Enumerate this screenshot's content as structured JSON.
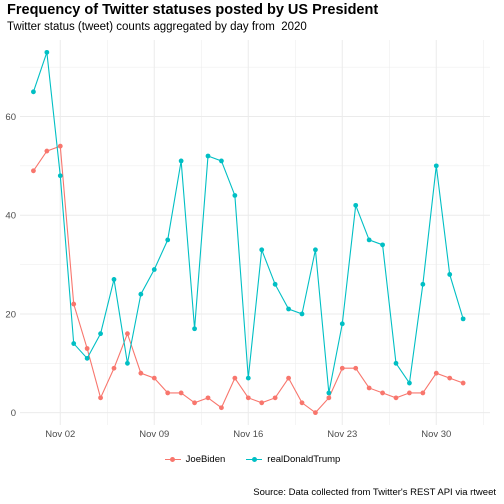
{
  "colors": {
    "JoeBiden": "#F8766D",
    "realDonaldTrump": "#00BFC4",
    "grid": "#ebebeb"
  },
  "chart_data": {
    "type": "line",
    "title": "Frequency of Twitter statuses posted by US President",
    "subtitle": "Twitter status (tweet) counts aggregated by day from  2020",
    "caption": "Source: Data collected from Twitter's REST API via rtweet",
    "xlabel": "",
    "ylabel": "",
    "x": [
      "2020-10-31",
      "2020-11-01",
      "2020-11-02",
      "2020-11-03",
      "2020-11-04",
      "2020-11-05",
      "2020-11-06",
      "2020-11-07",
      "2020-11-08",
      "2020-11-09",
      "2020-11-10",
      "2020-11-11",
      "2020-11-12",
      "2020-11-13",
      "2020-11-14",
      "2020-11-15",
      "2020-11-16",
      "2020-11-17",
      "2020-11-18",
      "2020-11-19",
      "2020-11-20",
      "2020-11-21",
      "2020-11-22",
      "2020-11-23",
      "2020-11-24",
      "2020-11-25",
      "2020-11-26",
      "2020-11-27",
      "2020-11-28",
      "2020-11-29",
      "2020-11-30",
      "2020-12-01",
      "2020-12-02",
      "2020-12-03"
    ],
    "x_ticks": [
      {
        "date": "2020-11-02",
        "label": "Nov 02"
      },
      {
        "date": "2020-11-09",
        "label": "Nov 09"
      },
      {
        "date": "2020-11-16",
        "label": "Nov 16"
      },
      {
        "date": "2020-11-23",
        "label": "Nov 23"
      },
      {
        "date": "2020-11-30",
        "label": "Nov 30"
      }
    ],
    "y_ticks": [
      0,
      20,
      40,
      60
    ],
    "ylim": [
      -2.5,
      75.5
    ],
    "xlim": [
      "2020-10-30",
      "2020-12-04"
    ],
    "grid": true,
    "legend_position": "bottom",
    "series": [
      {
        "name": "JoeBiden",
        "values": [
          49,
          53,
          54,
          22,
          13,
          3,
          9,
          16,
          8,
          7,
          4,
          4,
          2,
          3,
          1,
          7,
          3,
          2,
          3,
          7,
          2,
          0,
          3,
          9,
          9,
          5,
          4,
          3,
          4,
          4,
          8,
          7,
          6,
          null
        ]
      },
      {
        "name": "realDonaldTrump",
        "values": [
          65,
          73,
          48,
          14,
          11,
          16,
          27,
          10,
          24,
          29,
          35,
          51,
          17,
          52,
          51,
          44,
          7,
          33,
          26,
          21,
          20,
          33,
          4,
          18,
          42,
          35,
          34,
          10,
          6,
          26,
          50,
          28,
          19,
          null
        ]
      }
    ]
  }
}
